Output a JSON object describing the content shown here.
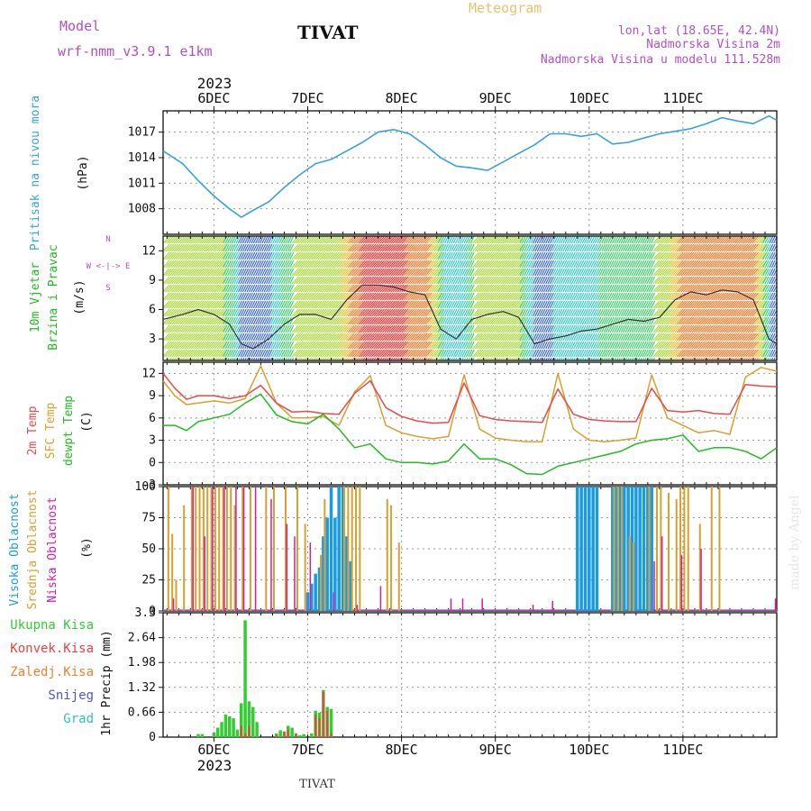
{
  "header": {
    "model_label": "Model",
    "model_name": "wrf-nmm_v3.9.1 e1km",
    "station": "TIVAT",
    "meteogram": "Meteogram",
    "coords": "lon,lat (18.65E, 42.4N)",
    "elevation": "Nadmorska Visina 2m",
    "model_elevation": "Nadmorska Visina u modelu 111.528m",
    "watermark": "made by Angel",
    "bottom_station": "TIVAT"
  },
  "time_axis": {
    "year": "2023",
    "day_labels": [
      "6DEC",
      "7DEC",
      "8DEC",
      "9DEC",
      "10DEC",
      "11DEC"
    ],
    "hours_start": -13,
    "hours_end": 144
  },
  "legend": {
    "wind_compass": "W <-|-> E",
    "wind_n": "N",
    "wind_s": "S"
  },
  "colors": {
    "pressure": "#3aa0e0",
    "temp2m": "#e84a4a",
    "sfc": "#d8a030",
    "dewpt": "#22bb22",
    "high_cloud": "#1a9ae0",
    "mid_cloud": "#d8a030",
    "low_cloud": "#d020a0",
    "precip_total": "#33cc33",
    "precip_conv": "#ee4040"
  },
  "chart_data": [
    {
      "type": "line",
      "title": "",
      "ylabel_lines": [
        "Pritisak na nivou mora",
        "(hPa)"
      ],
      "yticks": [
        1008,
        1011,
        1014,
        1017
      ],
      "ylim": [
        1005,
        1019.5
      ],
      "series": [
        {
          "x": [
            -13,
            -8,
            -4,
            0,
            4,
            7,
            10,
            14,
            18,
            22,
            26,
            30,
            34,
            38,
            42,
            46,
            50,
            54,
            58,
            62,
            66,
            70,
            74,
            78,
            82,
            86,
            90,
            94,
            98,
            102,
            106,
            110,
            114,
            118,
            122,
            126,
            130,
            134,
            138,
            142,
            144
          ],
          "y": [
            1014.8,
            1013.3,
            1011.3,
            1009.5,
            1008.0,
            1007.0,
            1007.8,
            1008.8,
            1010.5,
            1012.0,
            1013.3,
            1013.8,
            1014.8,
            1015.8,
            1017.0,
            1017.3,
            1016.8,
            1015.5,
            1014.0,
            1013.0,
            1012.8,
            1012.5,
            1013.5,
            1014.5,
            1015.5,
            1016.8,
            1016.8,
            1016.5,
            1016.8,
            1015.6,
            1015.8,
            1016.3,
            1016.8,
            1017.1,
            1017.4,
            1018.0,
            1018.7,
            1018.3,
            1018.0,
            1018.9,
            1018.4
          ]
        }
      ]
    },
    {
      "type": "line",
      "title": "",
      "ylabel_lines": [
        "10m Vjetar",
        "Brzina i Pravac",
        "(m/s)"
      ],
      "yticks": [
        3,
        6,
        9,
        12
      ],
      "ylim": [
        0.8,
        13.5
      ],
      "series": [
        {
          "name": "wind speed",
          "x": [
            -13,
            -8,
            -4,
            0,
            4,
            7,
            10,
            14,
            18,
            22,
            26,
            30,
            34,
            38,
            42,
            46,
            50,
            54,
            58,
            62,
            66,
            70,
            74,
            78,
            82,
            86,
            90,
            94,
            98,
            102,
            106,
            110,
            114,
            118,
            122,
            126,
            130,
            134,
            138,
            142,
            144
          ],
          "y": [
            5.0,
            5.5,
            6.0,
            5.5,
            4.5,
            2.5,
            2.0,
            3.0,
            4.5,
            5.5,
            5.5,
            5.0,
            7.0,
            8.5,
            8.5,
            8.3,
            7.8,
            7.5,
            4.0,
            3.0,
            5.0,
            5.5,
            5.8,
            5.2,
            2.5,
            3.0,
            3.3,
            3.8,
            4.0,
            4.5,
            5.0,
            4.8,
            5.2,
            7.0,
            7.8,
            7.5,
            8.0,
            7.8,
            7.0,
            3.0,
            2.5
          ]
        }
      ]
    },
    {
      "type": "line",
      "title": "",
      "ylabel_lines": [
        "2m Temp",
        "SFC Temp",
        "dewpt Temp",
        "(C)"
      ],
      "yticks": [
        -3,
        0,
        3,
        6,
        9,
        12
      ],
      "ylim": [
        -3,
        13.5
      ],
      "series": [
        {
          "name": "2m Temp",
          "x": [
            -13,
            -10,
            -7,
            -4,
            0,
            4,
            8,
            12,
            16,
            20,
            24,
            28,
            32,
            36,
            40,
            44,
            48,
            52,
            56,
            60,
            64,
            68,
            72,
            76,
            80,
            84,
            88,
            92,
            96,
            100,
            104,
            108,
            112,
            116,
            120,
            124,
            128,
            132,
            136,
            140,
            144
          ],
          "y": [
            12.0,
            10.0,
            8.5,
            9.0,
            9.0,
            8.6,
            9.0,
            10.4,
            8.0,
            6.8,
            6.9,
            6.6,
            6.5,
            9.3,
            11.0,
            7.4,
            6.2,
            5.6,
            5.3,
            5.4,
            10.7,
            6.3,
            5.8,
            5.6,
            5.5,
            5.4,
            9.9,
            6.5,
            5.8,
            5.6,
            5.5,
            5.5,
            10.0,
            7.0,
            6.8,
            7.0,
            6.6,
            6.5,
            10.5,
            10.3,
            10.2
          ]
        },
        {
          "name": "SFC Temp",
          "x": [
            -13,
            -10,
            -7,
            -4,
            0,
            4,
            8,
            12,
            16,
            20,
            24,
            28,
            32,
            36,
            40,
            44,
            48,
            52,
            56,
            60,
            64,
            68,
            72,
            76,
            80,
            84,
            88,
            92,
            96,
            100,
            104,
            108,
            112,
            116,
            120,
            124,
            128,
            132,
            136,
            140,
            144
          ],
          "y": [
            11.0,
            9.0,
            7.8,
            8.0,
            8.3,
            8.0,
            8.6,
            13.0,
            8.0,
            6.0,
            6.0,
            6.2,
            5.0,
            9.5,
            11.7,
            5.0,
            4.0,
            3.5,
            3.2,
            3.5,
            11.8,
            4.5,
            3.3,
            3.0,
            2.8,
            2.8,
            12.0,
            4.5,
            3.0,
            2.8,
            3.0,
            3.3,
            11.8,
            6.0,
            5.0,
            4.0,
            4.3,
            3.8,
            11.5,
            12.8,
            12.3
          ]
        },
        {
          "name": "dewpt Temp",
          "x": [
            -13,
            -10,
            -7,
            -4,
            0,
            4,
            8,
            12,
            16,
            20,
            24,
            28,
            32,
            36,
            40,
            44,
            48,
            52,
            56,
            60,
            64,
            68,
            72,
            76,
            80,
            84,
            88,
            92,
            96,
            100,
            104,
            108,
            112,
            116,
            120,
            124,
            128,
            132,
            136,
            140,
            144
          ],
          "y": [
            5.0,
            5.0,
            4.3,
            5.5,
            6.0,
            6.5,
            8.0,
            9.2,
            6.4,
            5.5,
            5.2,
            6.5,
            4.5,
            2.0,
            2.5,
            0.5,
            0.0,
            0.0,
            -0.2,
            0.2,
            2.5,
            0.5,
            0.5,
            -0.3,
            -1.5,
            -1.6,
            -0.5,
            0.0,
            0.5,
            1.0,
            1.5,
            2.5,
            3.0,
            3.2,
            3.7,
            1.5,
            2.0,
            2.0,
            1.5,
            0.5,
            2.0
          ]
        }
      ]
    },
    {
      "type": "bar",
      "title": "",
      "ylabel_lines": [
        "Visoka Oblacnost",
        "Srednja Oblacnost",
        "Niska Oblacnost",
        "(%)"
      ],
      "yticks": [
        0,
        25,
        50,
        75,
        100
      ],
      "ylim": [
        0,
        100
      ],
      "series": [
        {
          "name": "Visoka Oblacnost",
          "x": [
            24,
            25,
            26,
            27,
            28,
            29,
            30,
            31,
            32,
            33,
            34,
            35,
            93,
            94,
            95,
            96,
            97,
            98,
            102,
            103,
            104,
            105,
            106,
            107,
            108,
            109,
            110,
            111,
            112
          ],
          "y": [
            15,
            22,
            30,
            35,
            60,
            75,
            100,
            75,
            100,
            100,
            60,
            40,
            100,
            100,
            100,
            100,
            100,
            100,
            100,
            100,
            100,
            100,
            100,
            100,
            100,
            100,
            100,
            100,
            100
          ]
        },
        {
          "name": "Srednja Oblacnost",
          "x": [
            -12,
            -11,
            -10,
            -8,
            -6,
            -5,
            -4,
            -3,
            -2,
            -1,
            0,
            1,
            2,
            3,
            4,
            5,
            7,
            9,
            13,
            15,
            18,
            21,
            23,
            27,
            28,
            33,
            34,
            35,
            36,
            37,
            44,
            45,
            47,
            102,
            103,
            104,
            106,
            107,
            111,
            113,
            114,
            116,
            118,
            119,
            120,
            121,
            124,
            127,
            129
          ],
          "y": [
            100,
            62,
            25,
            85,
            100,
            100,
            100,
            100,
            100,
            100,
            100,
            100,
            100,
            100,
            100,
            85,
            100,
            100,
            100,
            100,
            100,
            100,
            70,
            45,
            90,
            100,
            100,
            100,
            100,
            100,
            90,
            85,
            55,
            100,
            100,
            100,
            60,
            55,
            100,
            100,
            100,
            95,
            90,
            100,
            100,
            100,
            70,
            100,
            100
          ]
        },
        {
          "name": "Niska Oblacnost",
          "x": [
            -10,
            -5,
            -2,
            0,
            3,
            6,
            8,
            11,
            15,
            19,
            21,
            25,
            31,
            37,
            43,
            61,
            64,
            69,
            82,
            87,
            113,
            115,
            120,
            125,
            144
          ],
          "y": [
            10,
            100,
            60,
            100,
            100,
            100,
            100,
            100,
            90,
            70,
            60,
            55,
            15,
            5,
            20,
            10,
            10,
            10,
            5,
            8,
            40,
            60,
            45,
            50,
            10
          ]
        }
      ]
    },
    {
      "type": "bar",
      "title": "",
      "ylabel_lines": [
        "1hr Precip (mm)"
      ],
      "legend_entries": [
        "Ukupna Kisa",
        "Konvek.Kisa",
        "Zaledj.Kisa",
        "Snijeg",
        "Grad"
      ],
      "yticks": [
        0,
        0.66,
        1.32,
        1.98,
        2.64,
        3.3
      ],
      "ylim": [
        0,
        3.3
      ],
      "series": [
        {
          "name": "Ukupna Kisa",
          "x": [
            -4,
            -3,
            0,
            1,
            2,
            3,
            4,
            5,
            6,
            7,
            8,
            9,
            10,
            11,
            16,
            17,
            18,
            19,
            20,
            21,
            22,
            23,
            25,
            26,
            27,
            28,
            29,
            30
          ],
          "y": [
            0.08,
            0.08,
            0.12,
            0.25,
            0.4,
            0.6,
            0.55,
            0.5,
            0.2,
            0.9,
            3.1,
            0.95,
            0.8,
            0.4,
            0.1,
            0.18,
            0.15,
            0.3,
            0.25,
            0.1,
            0.05,
            0.08,
            0.1,
            0.7,
            0.65,
            1.25,
            0.8,
            0.75
          ]
        },
        {
          "name": "Konvek.Kisa",
          "x": [
            7,
            8,
            9,
            16,
            18,
            19,
            21,
            26,
            27,
            28,
            29,
            30
          ],
          "y": [
            0.3,
            0.1,
            0.3,
            0.05,
            0.15,
            0.2,
            0.08,
            0.6,
            0.5,
            1.2,
            0.7,
            0.1
          ]
        }
      ]
    }
  ]
}
